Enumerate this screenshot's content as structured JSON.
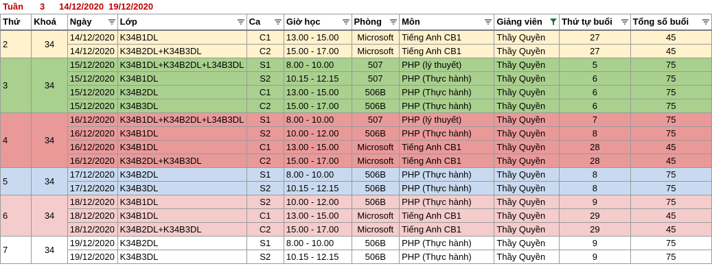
{
  "week": {
    "label": "Tuần",
    "number": "3",
    "start": "14/12/2020",
    "end": "19/12/2020"
  },
  "headers": {
    "thu": "Thứ",
    "khoa": "Khoá",
    "ngay": "Ngày",
    "lop": "Lớp",
    "ca": "Ca",
    "gio": "Giờ học",
    "phong": "Phòng",
    "mon": "Môn",
    "gv": "Giảng viên",
    "thutu": "Thứ tự buổi",
    "tongso": "Tổng số buổi"
  },
  "colors": {
    "yellow": "#fff2cc",
    "green": "#a9d08e",
    "red": "#ea9999",
    "blue": "#c9daf0",
    "pink": "#f4cccc",
    "white": "#ffffff",
    "filter_active": "#1e7145",
    "title_red": "#c00000"
  },
  "groups": [
    {
      "thu": "2",
      "khoa": "34",
      "color": "yellow",
      "rows": [
        {
          "ngay": "14/12/2020",
          "lop": "K34B1DL",
          "ca": "C1",
          "gio": "13.00 - 15.00",
          "phong": "Microsoft",
          "mon": "Tiếng Anh CB1",
          "gv": "Thầy Quyền",
          "thutu": "27",
          "tongso": "45"
        },
        {
          "ngay": "14/12/2020",
          "lop": "K34B2DL+K34B3DL",
          "ca": "C2",
          "gio": "15.00 - 17.00",
          "phong": "Microsoft",
          "mon": "Tiếng Anh CB1",
          "gv": "Thầy Quyền",
          "thutu": "27",
          "tongso": "45"
        }
      ]
    },
    {
      "thu": "3",
      "khoa": "34",
      "color": "green",
      "rows": [
        {
          "ngay": "15/12/2020",
          "lop": "K34B1DL+K34B2DL+L34B3DL",
          "ca": "S1",
          "gio": "8.00 - 10.00",
          "phong": "507",
          "mon": "PHP (lý thuyết)",
          "gv": "Thầy Quyền",
          "thutu": "5",
          "tongso": "75"
        },
        {
          "ngay": "15/12/2020",
          "lop": "K34B1DL",
          "ca": "S2",
          "gio": "10.15 - 12.15",
          "phong": "507",
          "mon": "PHP (Thực hành)",
          "gv": "Thầy Quyền",
          "thutu": "6",
          "tongso": "75"
        },
        {
          "ngay": "15/12/2020",
          "lop": "K34B2DL",
          "ca": "C1",
          "gio": "13.00 - 15.00",
          "phong": "506B",
          "mon": "PHP (Thực hành)",
          "gv": "Thầy Quyền",
          "thutu": "6",
          "tongso": "75"
        },
        {
          "ngay": "15/12/2020",
          "lop": "K34B3DL",
          "ca": "C2",
          "gio": "15.00 - 17.00",
          "phong": "506B",
          "mon": "PHP (Thực hành)",
          "gv": "Thầy Quyền",
          "thutu": "6",
          "tongso": "75"
        }
      ]
    },
    {
      "thu": "4",
      "khoa": "34",
      "color": "red",
      "rows": [
        {
          "ngay": "16/12/2020",
          "lop": "K34B1DL+K34B2DL+L34B3DL",
          "ca": "S1",
          "gio": "8.00 - 10.00",
          "phong": "507",
          "mon": "PHP (lý thuyết)",
          "gv": "Thầy Quyền",
          "thutu": "7",
          "tongso": "75"
        },
        {
          "ngay": "16/12/2020",
          "lop": "K34B1DL",
          "ca": "S2",
          "gio": "10.00 - 12.00",
          "phong": "506B",
          "mon": "PHP (Thực hành)",
          "gv": "Thầy Quyền",
          "thutu": "8",
          "tongso": "75"
        },
        {
          "ngay": "16/12/2020",
          "lop": "K34B1DL",
          "ca": "C1",
          "gio": "13.00 - 15.00",
          "phong": "Microsoft",
          "mon": "Tiếng Anh CB1",
          "gv": "Thầy Quyền",
          "thutu": "28",
          "tongso": "45"
        },
        {
          "ngay": "16/12/2020",
          "lop": "K34B2DL+K34B3DL",
          "ca": "C2",
          "gio": "15.00 - 17.00",
          "phong": "Microsoft",
          "mon": "Tiếng Anh CB1",
          "gv": "Thầy Quyền",
          "thutu": "28",
          "tongso": "45"
        }
      ]
    },
    {
      "thu": "5",
      "khoa": "34",
      "color": "blue",
      "rows": [
        {
          "ngay": "17/12/2020",
          "lop": "K34B2DL",
          "ca": "S1",
          "gio": "8.00 - 10.00",
          "phong": "506B",
          "mon": "PHP (Thực hành)",
          "gv": "Thầy Quyền",
          "thutu": "8",
          "tongso": "75"
        },
        {
          "ngay": "17/12/2020",
          "lop": "K34B3DL",
          "ca": "S2",
          "gio": "10.15 - 12.15",
          "phong": "506B",
          "mon": "PHP (Thực hành)",
          "gv": "Thầy Quyền",
          "thutu": "8",
          "tongso": "75"
        }
      ]
    },
    {
      "thu": "6",
      "khoa": "34",
      "color": "pink",
      "rows": [
        {
          "ngay": "18/12/2020",
          "lop": "K34B1DL",
          "ca": "S2",
          "gio": "10.00 - 12.00",
          "phong": "506B",
          "mon": "PHP (Thực hành)",
          "gv": "Thầy Quyền",
          "thutu": "9",
          "tongso": "75"
        },
        {
          "ngay": "18/12/2020",
          "lop": "K34B1DL",
          "ca": "C1",
          "gio": "13.00 - 15.00",
          "phong": "Microsoft",
          "mon": "Tiếng Anh CB1",
          "gv": "Thầy Quyền",
          "thutu": "29",
          "tongso": "45"
        },
        {
          "ngay": "18/12/2020",
          "lop": "K34B2DL+K34B3DL",
          "ca": "C2",
          "gio": "15.00 - 17.00",
          "phong": "Microsoft",
          "mon": "Tiếng Anh CB1",
          "gv": "Thầy Quyền",
          "thutu": "29",
          "tongso": "45"
        }
      ]
    },
    {
      "thu": "7",
      "khoa": "34",
      "color": "white",
      "rows": [
        {
          "ngay": "19/12/2020",
          "lop": "K34B2DL",
          "ca": "S1",
          "gio": "8.00 - 10.00",
          "phong": "506B",
          "mon": "PHP (Thực hành)",
          "gv": "Thầy Quyền",
          "thutu": "9",
          "tongso": "75"
        },
        {
          "ngay": "19/12/2020",
          "lop": "K34B3DL",
          "ca": "S2",
          "gio": "10.15 - 12.15",
          "phong": "506B",
          "mon": "PHP (Thực hành)",
          "gv": "Thầy Quyền",
          "thutu": "9",
          "tongso": "75"
        }
      ]
    }
  ]
}
